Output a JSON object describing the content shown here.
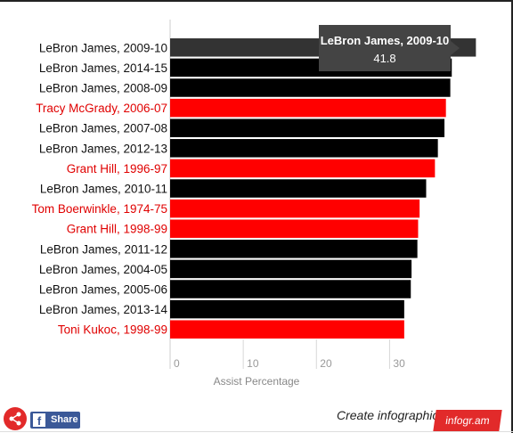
{
  "chart_data": {
    "type": "bar",
    "orientation": "horizontal",
    "categories": [
      "LeBron James, 2009-10",
      "LeBron James, 2014-15",
      "LeBron James, 2008-09",
      "Tracy McGrady, 2006-07",
      "LeBron James, 2007-08",
      "LeBron James, 2012-13",
      "Grant Hill, 1996-97",
      "LeBron James, 2010-11",
      "Tom Boerwinkle, 1974-75",
      "Grant Hill, 1998-99",
      "LeBron James, 2011-12",
      "LeBron James, 2004-05",
      "LeBron James, 2005-06",
      "LeBron James, 2013-14",
      "Toni Kukoc, 1998-99"
    ],
    "values": [
      41.8,
      38.5,
      38.3,
      37.7,
      37.5,
      36.6,
      36.2,
      35.0,
      34.1,
      33.9,
      33.8,
      33.0,
      32.9,
      32.0,
      32.0
    ],
    "colors": [
      "#000000",
      "#000000",
      "#000000",
      "#ff0000",
      "#000000",
      "#000000",
      "#ff0000",
      "#000000",
      "#ff0000",
      "#ff0000",
      "#000000",
      "#000000",
      "#000000",
      "#000000",
      "#ff0000"
    ],
    "highlight_color": "#333333",
    "highlighted_index": 0,
    "xlabel": "Assist Percentage",
    "ylabel": "",
    "xticks": [
      0,
      10,
      20,
      30
    ],
    "xlim": [
      0,
      42
    ],
    "grid": true,
    "tooltip": {
      "title": "LeBron James, 2009-10",
      "value": "41.8"
    }
  },
  "footer": {
    "share_icon": "share-icon",
    "facebook_label": "Share",
    "create_label": "Create infographics",
    "brand_label": "infogr.am"
  }
}
